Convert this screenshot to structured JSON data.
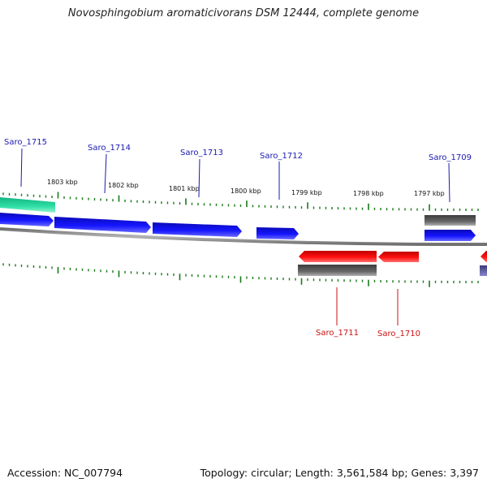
{
  "title": "Novosphingobium aromaticivorans DSM 12444, complete genome",
  "accession": "Accession: NC_007794",
  "summary": "Topology: circular; Length: 3,561,584 bp; Genes: 3,397",
  "colors": {
    "forward_gene": "#0b0bd8",
    "reverse_gene": "#ee0000",
    "other_feature": "#5a5a5a",
    "highlight": "#22d39a",
    "tick": "#1a7a1a",
    "backbone": "#808080",
    "forward_label": "#1a1ab0",
    "reverse_label": "#cc1111"
  },
  "ruler_labels": [
    "1803 kbp",
    "1802 kbp",
    "1801 kbp",
    "1800 kbp",
    "1799 kbp",
    "1798 kbp",
    "1797 kbp"
  ],
  "gene_labels": [
    {
      "text": "Saro_1715",
      "strand": "forward"
    },
    {
      "text": "Saro_1714",
      "strand": "forward"
    },
    {
      "text": "Saro_1713",
      "strand": "forward"
    },
    {
      "text": "Saro_1712",
      "strand": "forward"
    },
    {
      "text": "Saro_1709",
      "strand": "forward"
    },
    {
      "text": "Saro_1711",
      "strand": "reverse"
    },
    {
      "text": "Saro_1710",
      "strand": "reverse"
    }
  ]
}
